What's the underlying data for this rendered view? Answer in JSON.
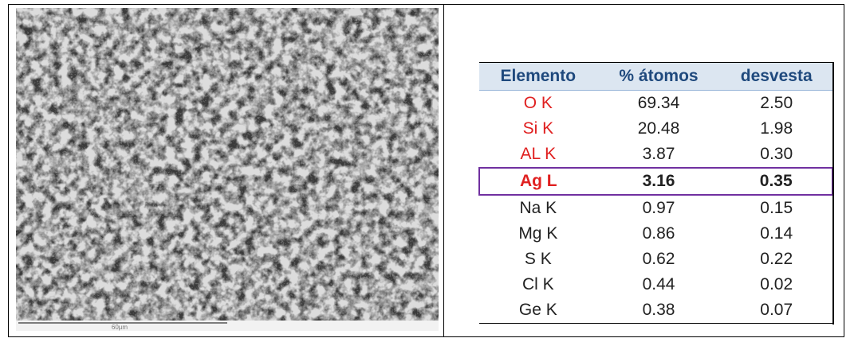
{
  "image": {
    "scale_label": "60µm"
  },
  "table": {
    "header": [
      "Elemento",
      "% átomos",
      "desvesta"
    ],
    "rows": [
      [
        "O  K",
        "69.34",
        "2.50"
      ],
      [
        "Si K",
        "20.48",
        "1.98"
      ],
      [
        "AL K",
        "3.87",
        "0.30"
      ],
      [
        "Ag L",
        "3.16",
        "0.35"
      ],
      [
        "Na K",
        "0.97",
        "0.15"
      ],
      [
        "Mg K",
        "0.86",
        "0.14"
      ],
      [
        "S K",
        "0.62",
        "0.22"
      ],
      [
        "Cl K",
        "0.44",
        "0.02"
      ],
      [
        "Ge K",
        "0.38",
        "0.07"
      ]
    ]
  }
}
